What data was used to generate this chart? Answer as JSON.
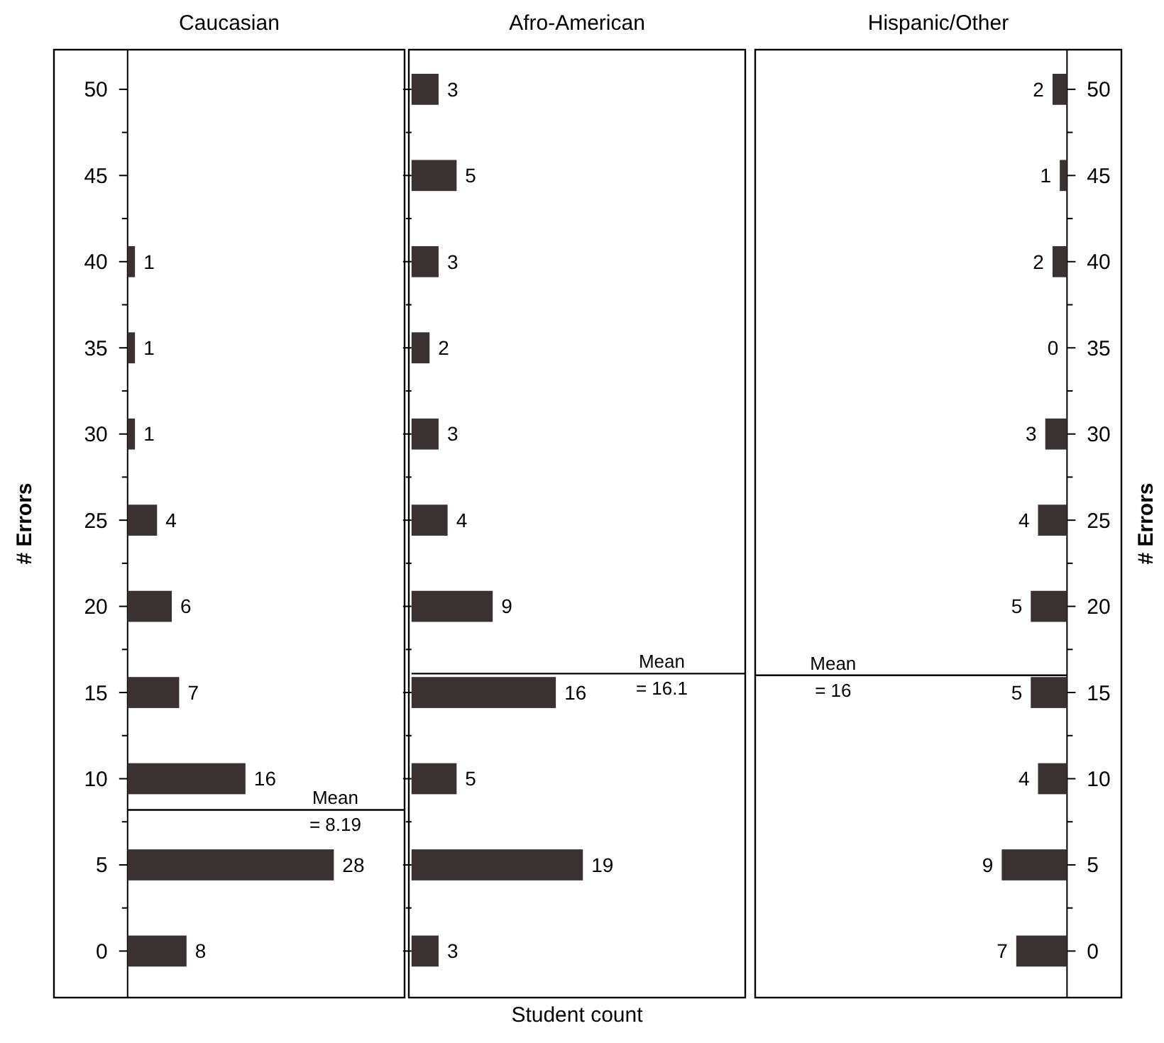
{
  "chart_data": [
    {
      "type": "bar",
      "orientation": "horizontal",
      "title": "Caucasian",
      "ylabel": "# Errors",
      "x": [
        0,
        5,
        10,
        15,
        20,
        25,
        30,
        35,
        40
      ],
      "xlim": [
        -10,
        37.6
      ],
      "ylim": [
        -2.7,
        52.3
      ],
      "yticks": [
        0,
        {
          "value": 2.5,
          "label": null
        },
        5,
        {
          "value": 7.5,
          "label": null
        },
        10,
        {
          "value": 12.5,
          "label": null
        },
        15,
        {
          "value": 17.5,
          "label": null
        },
        20,
        {
          "value": 22.5,
          "label": null
        },
        25,
        {
          "value": 27.5,
          "label": null
        },
        30,
        {
          "value": 32.5,
          "label": null
        },
        35,
        {
          "value": 37.5,
          "label": null
        },
        40,
        {
          "value": 42.5,
          "label": null
        },
        45,
        {
          "value": 47.5,
          "label": null
        },
        50
      ],
      "tick_labels": "y",
      "grid": false,
      "data_labels": true,
      "series": [
        {
          "color": "#3a3232",
          "values": [
            8,
            28,
            16,
            7,
            6,
            4,
            1,
            1,
            1
          ]
        }
      ],
      "ref_lines": [
        {
          "axis": "y",
          "value": 8.19,
          "label": "Mean\n= 8.19",
          "color": "#000000"
        }
      ]
    },
    {
      "type": "bar",
      "orientation": "horizontal",
      "title": "Afro-American",
      "xlabel": "Student count",
      "x": [
        0,
        5,
        10,
        15,
        20,
        25,
        30,
        35,
        40,
        45,
        50
      ],
      "xlim": [
        -0.3,
        37
      ],
      "ylim": [
        -2.7,
        52.3
      ],
      "yticks": [
        0,
        {
          "value": 2.5,
          "label": null
        },
        5,
        {
          "value": 7.5,
          "label": null
        },
        10,
        {
          "value": 12.5,
          "label": null
        },
        15,
        {
          "value": 17.5,
          "label": null
        },
        20,
        {
          "value": 22.5,
          "label": null
        },
        25,
        {
          "value": 27.5,
          "label": null
        },
        30,
        {
          "value": 32.5,
          "label": null
        },
        35,
        {
          "value": 37.5,
          "label": null
        },
        40,
        {
          "value": 42.5,
          "label": null
        },
        45,
        {
          "value": 47.5,
          "label": null
        },
        50
      ],
      "tick_labels": false,
      "grid": false,
      "data_labels": true,
      "series": [
        {
          "color": "#3a3232",
          "values": [
            3,
            19,
            5,
            16,
            9,
            4,
            3,
            2,
            3,
            5,
            3
          ]
        }
      ],
      "ref_lines": [
        {
          "axis": "y",
          "value": 16.1,
          "label": "Mean\n= 16.1",
          "color": "#000000"
        }
      ]
    },
    {
      "type": "bar",
      "orientation": "horizontal",
      "title": "Hispanic/Other",
      "ylabel": "# Errors",
      "x": [
        0,
        5,
        10,
        15,
        20,
        25,
        30,
        35,
        40,
        45,
        50
      ],
      "xlim": [
        43,
        -7.5
      ],
      "ylim": [
        -2.7,
        52.3
      ],
      "yticks": [
        0,
        {
          "value": 2.5,
          "label": null
        },
        5,
        {
          "value": 7.5,
          "label": null
        },
        10,
        {
          "value": 12.5,
          "label": null
        },
        15,
        {
          "value": 17.5,
          "label": null
        },
        20,
        {
          "value": 22.5,
          "label": null
        },
        25,
        {
          "value": 27.5,
          "label": null
        },
        30,
        {
          "value": 32.5,
          "label": null
        },
        35,
        {
          "value": 37.5,
          "label": null
        },
        40,
        {
          "value": 42.5,
          "label": null
        },
        45,
        {
          "value": 47.5,
          "label": null
        },
        50
      ],
      "tick_labels": "y",
      "grid": false,
      "data_labels": true,
      "series": [
        {
          "color": "#3a3232",
          "values": [
            7,
            9,
            4,
            5,
            5,
            4,
            3,
            0,
            2,
            1,
            2
          ]
        }
      ],
      "ref_lines": [
        {
          "axis": "y",
          "value": 16,
          "label": "Mean\n= 16",
          "color": "#000000"
        }
      ]
    }
  ]
}
